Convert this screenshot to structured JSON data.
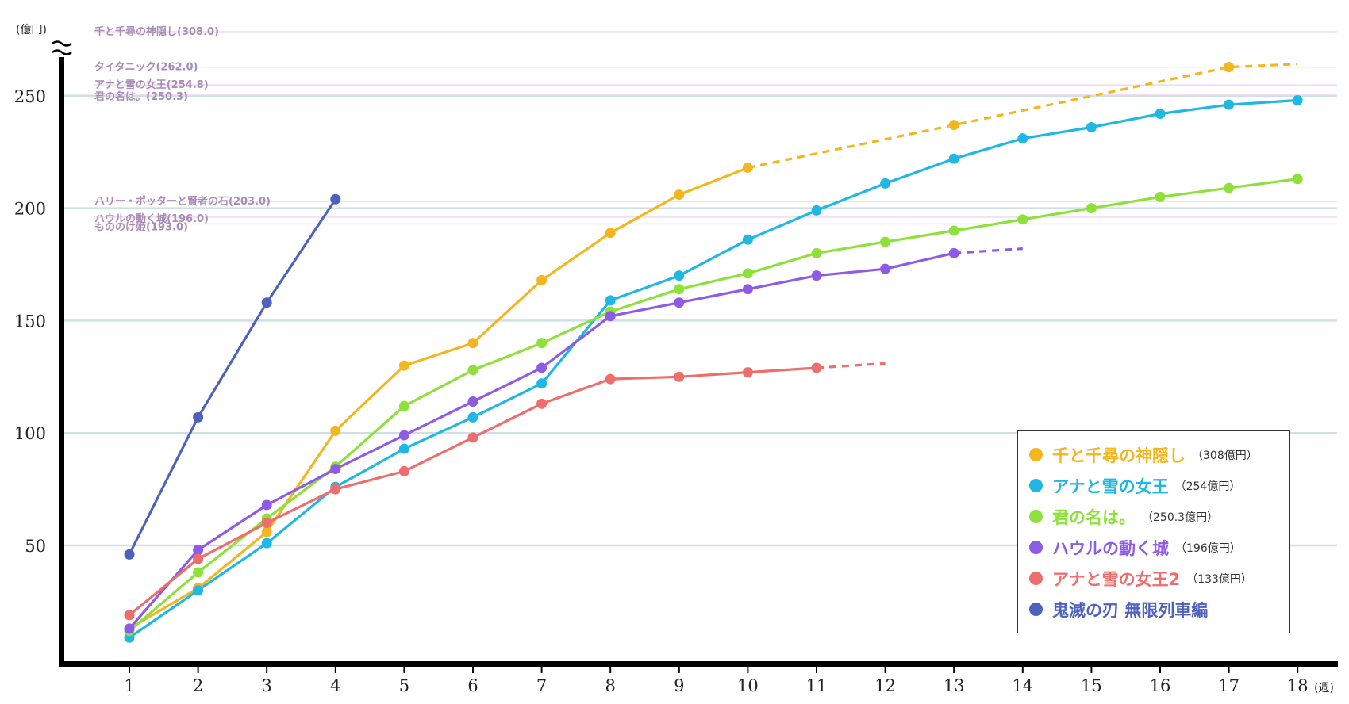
{
  "chart_data": {
    "type": "line",
    "y_unit_label": "(億円)",
    "x_unit_label": "(週)",
    "x": [
      1,
      2,
      3,
      4,
      5,
      6,
      7,
      8,
      9,
      10,
      11,
      12,
      13,
      14,
      15,
      16,
      17,
      18
    ],
    "ylim": [
      0,
      320
    ],
    "y_axis_break": true,
    "yticks": [
      50,
      100,
      150,
      200,
      250
    ],
    "grid": true,
    "legend_position": "bottom-right",
    "reference_lines": [
      {
        "label": "千と千尋の神隠し(308.0)",
        "value": 308.0
      },
      {
        "label": "タイタニック(262.0)",
        "value": 262.0
      },
      {
        "label": "アナと雪の女王(254.8)",
        "value": 254.8
      },
      {
        "label": "君の名は。(250.3)",
        "value": 250.3
      },
      {
        "label": "ハリー・ポッターと賢者の石(203.0)",
        "value": 203.0
      },
      {
        "label": "ハウルの動く城(196.0)",
        "value": 196.0
      },
      {
        "label": "もののけ姫(193.0)",
        "value": 193.0
      }
    ],
    "series": [
      {
        "name": "千と千尋の神隠し",
        "total": "（308億円）",
        "color": "#f4b61f",
        "points": [
          [
            1,
            13
          ],
          [
            2,
            31
          ],
          [
            3,
            56
          ],
          [
            4,
            101
          ],
          [
            5,
            130
          ],
          [
            6,
            140
          ],
          [
            7,
            168
          ],
          [
            8,
            189
          ],
          [
            9,
            206
          ],
          [
            10,
            218
          ]
        ],
        "extra_points": [
          [
            13,
            237
          ],
          [
            17,
            262
          ]
        ],
        "projection": [
          [
            10,
            218
          ],
          [
            13,
            237
          ],
          [
            17,
            262
          ],
          [
            18,
            266
          ]
        ]
      },
      {
        "name": "アナと雪の女王",
        "total": "（254億円）",
        "color": "#1fb8e4",
        "points": [
          [
            1,
            9
          ],
          [
            2,
            30
          ],
          [
            3,
            51
          ],
          [
            4,
            76
          ],
          [
            5,
            93
          ],
          [
            6,
            107
          ],
          [
            7,
            122
          ],
          [
            8,
            159
          ],
          [
            9,
            170
          ],
          [
            10,
            186
          ],
          [
            11,
            199
          ],
          [
            12,
            211
          ],
          [
            13,
            222
          ],
          [
            14,
            231
          ],
          [
            15,
            236
          ],
          [
            16,
            242
          ],
          [
            17,
            246
          ],
          [
            18,
            248
          ]
        ],
        "projection": []
      },
      {
        "name": "君の名は。",
        "total": "（250.3億円）",
        "color": "#8ee03b",
        "points": [
          [
            1,
            12
          ],
          [
            2,
            38
          ],
          [
            3,
            62
          ],
          [
            4,
            85
          ],
          [
            5,
            112
          ],
          [
            6,
            128
          ],
          [
            7,
            140
          ],
          [
            8,
            154
          ],
          [
            9,
            164
          ],
          [
            10,
            171
          ],
          [
            11,
            180
          ],
          [
            12,
            185
          ],
          [
            13,
            190
          ],
          [
            14,
            195
          ],
          [
            15,
            200
          ],
          [
            16,
            205
          ],
          [
            17,
            209
          ],
          [
            18,
            213
          ]
        ],
        "projection": []
      },
      {
        "name": "ハウルの動く城",
        "total": "（196億円）",
        "color": "#8f5be6",
        "points": [
          [
            1,
            13
          ],
          [
            2,
            48
          ],
          [
            3,
            68
          ],
          [
            4,
            84
          ],
          [
            5,
            99
          ],
          [
            6,
            114
          ],
          [
            7,
            129
          ],
          [
            8,
            152
          ],
          [
            9,
            158
          ],
          [
            10,
            164
          ],
          [
            11,
            170
          ],
          [
            12,
            173
          ],
          [
            13,
            180
          ]
        ],
        "projection": [
          [
            13,
            180
          ],
          [
            14,
            182
          ]
        ]
      },
      {
        "name": "アナと雪の女王2",
        "total": "（133億円）",
        "color": "#ee6e6e",
        "points": [
          [
            1,
            19
          ],
          [
            2,
            44
          ],
          [
            3,
            60
          ],
          [
            4,
            75
          ],
          [
            5,
            83
          ],
          [
            6,
            98
          ],
          [
            7,
            113
          ],
          [
            8,
            124
          ],
          [
            9,
            125
          ],
          [
            10,
            127
          ],
          [
            11,
            129
          ]
        ],
        "projection": [
          [
            11,
            129
          ],
          [
            12,
            131
          ]
        ]
      },
      {
        "name": "鬼滅の刃 無限列車編",
        "total": "",
        "color": "#4e62bd",
        "points": [
          [
            1,
            46
          ],
          [
            2,
            107
          ],
          [
            3,
            158
          ],
          [
            4,
            204
          ]
        ],
        "projection": []
      }
    ]
  }
}
